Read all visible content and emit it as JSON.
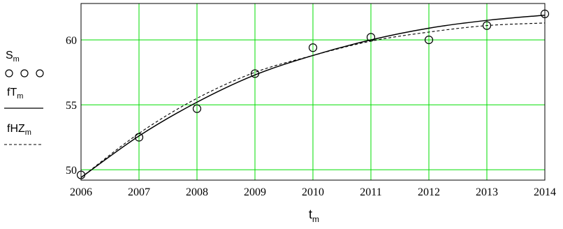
{
  "chart_data": {
    "type": "scatter",
    "x_ticks": [
      2006,
      2007,
      2008,
      2009,
      2010,
      2011,
      2012,
      2013,
      2014
    ],
    "y_ticks": [
      50,
      55,
      60
    ],
    "xlim": [
      2006,
      2014
    ],
    "ylim": [
      49.2,
      62.8
    ],
    "grid": true,
    "grid_color": "#00dd00",
    "xlabel": {
      "main": "t",
      "sub": "m"
    },
    "legend_position": "left",
    "series": [
      {
        "name": {
          "main": "S",
          "sub": "m"
        },
        "style": "circles",
        "color": "#000000",
        "x": [
          2006,
          2007,
          2008,
          2009,
          2010,
          2011,
          2012,
          2013,
          2014
        ],
        "y": [
          49.6,
          52.5,
          54.7,
          57.4,
          59.4,
          60.2,
          60.0,
          61.1,
          62.0
        ]
      },
      {
        "name": {
          "main": "fT",
          "sub": "m"
        },
        "style": "solid",
        "color": "#000000",
        "x": [
          2006,
          2007,
          2008,
          2009,
          2010,
          2011,
          2012,
          2013,
          2014
        ],
        "y": [
          49.4,
          52.6,
          55.2,
          57.3,
          58.8,
          60.0,
          60.9,
          61.5,
          61.9
        ]
      },
      {
        "name": {
          "main": "fHZ",
          "sub": "m"
        },
        "style": "dashed",
        "color": "#000000",
        "x": [
          2006,
          2007,
          2008,
          2009,
          2010,
          2011,
          2012,
          2013,
          2014
        ],
        "y": [
          49.4,
          52.8,
          55.5,
          57.5,
          58.8,
          59.9,
          60.6,
          61.1,
          61.3
        ]
      }
    ]
  }
}
